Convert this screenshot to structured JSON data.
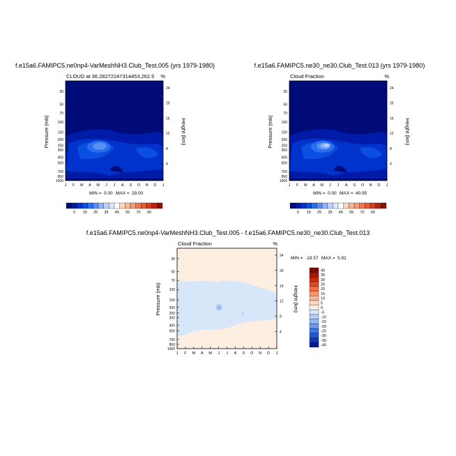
{
  "chart_data": [
    {
      "type": "heatmap",
      "title": "f.e15a6.FAMIPC5.ne0np4-VarMeshNH3.Club_Test.005 (yrs 1979-1980)",
      "subtitle_left": "CLOUD at 36.28272247314453,262.5",
      "subtitle_right": "%",
      "ylabel": "Pressure (mb)",
      "ylabel_right": "Height (km)",
      "x_ticks": [
        "J",
        "F",
        "M",
        "A",
        "M",
        "J",
        "J",
        "A",
        "S",
        "O",
        "N",
        "D",
        "J"
      ],
      "y_ticks": [
        "30",
        "50",
        "70",
        "100",
        "150",
        "200",
        "250",
        "300",
        "400",
        "500",
        "700",
        "850",
        "1000"
      ],
      "y_ticks_right": [
        "24",
        "20",
        "16",
        "12",
        "8",
        "4"
      ],
      "levels": [
        "5",
        "15",
        "25",
        "35",
        "45",
        "55",
        "70",
        "90"
      ],
      "min_label": "MIN =",
      "min_value": "0.00",
      "max_label": "MAX =",
      "max_value": "29.00"
    },
    {
      "type": "heatmap",
      "title": "f.e15a6.FAMIPC5.ne30_ne30.Club_Test.013 (yrs 1979-1980)",
      "subtitle_left": "Cloud Fraction",
      "subtitle_right": "%",
      "ylabel": "Pressure (mb)",
      "ylabel_right": "Height (km)",
      "x_ticks": [
        "J",
        "F",
        "M",
        "A",
        "M",
        "J",
        "J",
        "A",
        "S",
        "O",
        "N",
        "D",
        "J"
      ],
      "y_ticks": [
        "30",
        "50",
        "70",
        "100",
        "150",
        "200",
        "250",
        "300",
        "400",
        "500",
        "700",
        "850",
        "1000"
      ],
      "y_ticks_right": [
        "24",
        "20",
        "16",
        "12",
        "8",
        "4"
      ],
      "levels": [
        "5",
        "15",
        "25",
        "35",
        "45",
        "55",
        "70",
        "90"
      ],
      "min_label": "MIN =",
      "min_value": "0.00",
      "max_label": "MAX =",
      "max_value": "40.95"
    },
    {
      "type": "heatmap",
      "title": "f.e15a6.FAMIPC5.ne0np4-VarMeshNH3.Club_Test.005 - f.e15a6.FAMIPC5.ne30_ne30.Club_Test.013",
      "subtitle_left": "Cloud Fraction",
      "subtitle_right": "%",
      "ylabel": "Pressure (mb)",
      "ylabel_right": "Height (km)",
      "x_ticks": [
        "J",
        "F",
        "M",
        "A",
        "M",
        "J",
        "J",
        "A",
        "S",
        "O",
        "N",
        "D",
        "J"
      ],
      "y_ticks": [
        "30",
        "50",
        "70",
        "100",
        "150",
        "200",
        "250",
        "300",
        "400",
        "500",
        "700",
        "850",
        "1000"
      ],
      "y_ticks_right": [
        "24",
        "20",
        "16",
        "12",
        "8",
        "4"
      ],
      "levels": [
        "40",
        "35",
        "30",
        "25",
        "20",
        "15",
        "10",
        "5",
        "0",
        "-5",
        "-10",
        "-15",
        "-20",
        "-25",
        "-30",
        "-35",
        "-40"
      ],
      "min_label": "MIN =",
      "min_value": "-19.57",
      "max_label": "MAX =",
      "max_value": "5.92"
    }
  ],
  "colors": {
    "blue_scale": [
      "#000b7a",
      "#001ba8",
      "#0033cc",
      "#0a4fe0",
      "#2a6ef0",
      "#5a8ff5",
      "#8fb2f7",
      "#bcd1f8",
      "#dde7fa",
      "#ffffff"
    ],
    "warm_scale": [
      "#f9d7bd",
      "#f7b898",
      "#f39a76",
      "#ee7a55",
      "#e65a37",
      "#d83a1f",
      "#b82010",
      "#8a1005"
    ],
    "diff_scale": [
      "#7a0c02",
      "#a51705",
      "#c82a0a",
      "#e34a1e",
      "#ef6f42",
      "#f5966b",
      "#f8b999",
      "#fbd6c1",
      "#fdeee2",
      "#d8e6fa",
      "#b7cff5",
      "#93b5f0",
      "#6b96ea",
      "#4577e0",
      "#2457d1",
      "#0e38b5",
      "#001c8a"
    ]
  }
}
